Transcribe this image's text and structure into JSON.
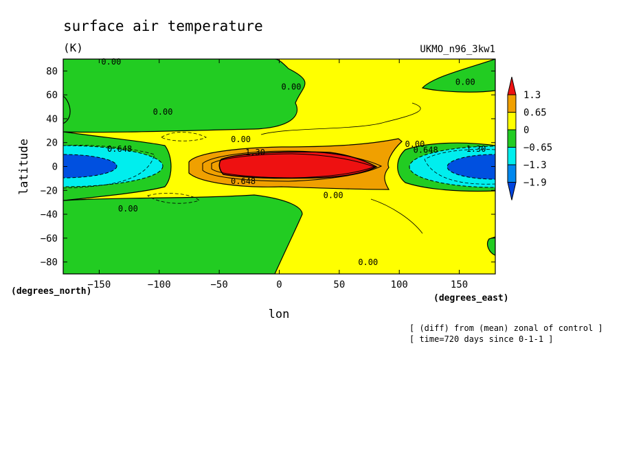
{
  "chart_data": {
    "type": "heatmap",
    "title": "surface air temperature",
    "units": "(K)",
    "model": "UKMO_n96_3kw1",
    "xlabel": "lon",
    "ylabel": "latitude",
    "x_units": "(degrees_east)",
    "y_units": "(degrees_north)",
    "xlim": [
      -180,
      180
    ],
    "ylim": [
      -90,
      90
    ],
    "x_ticks": [
      -150,
      -100,
      -50,
      0,
      50,
      100,
      150
    ],
    "y_ticks": [
      80,
      60,
      40,
      20,
      0,
      -20,
      -40,
      -60,
      -80
    ],
    "colorbar": {
      "levels": [
        1.3,
        0.65,
        0,
        -0.65,
        -1.3,
        -1.9
      ],
      "labels": [
        "1.3",
        "0.65",
        "0",
        "−0.65",
        "−1.3",
        "−1.9"
      ],
      "colors": [
        "#ee1111",
        "#f0a000",
        "#ffff00",
        "#22cc22",
        "#00eeee",
        "#0088ee",
        "#0044dd"
      ]
    },
    "contour_labels": [
      {
        "text": "0.00",
        "lon": -140,
        "lat": 86
      },
      {
        "text": "0.00",
        "lon": 10,
        "lat": 65
      },
      {
        "text": "0.00",
        "lon": 155,
        "lat": 69
      },
      {
        "text": "0.00",
        "lon": -97,
        "lat": 44
      },
      {
        "text": "0.00",
        "lon": -32,
        "lat": 21
      },
      {
        "text": "0.00",
        "lon": 113,
        "lat": 17
      },
      {
        "text": "0.648",
        "lon": -133,
        "lat": 13
      },
      {
        "text": "1.30",
        "lon": -20,
        "lat": 10
      },
      {
        "text": "0.648",
        "lon": 122,
        "lat": 12
      },
      {
        "text": "1.30",
        "lon": 164,
        "lat": 13
      },
      {
        "text": "0.648",
        "lon": -30,
        "lat": -14
      },
      {
        "text": "0.00",
        "lon": 45,
        "lat": -26
      },
      {
        "text": "0.00",
        "lon": -126,
        "lat": -37
      },
      {
        "text": "0.00",
        "lon": 74,
        "lat": -82
      }
    ],
    "notes": [
      "[ (diff) from (mean) zonal of control ]",
      "[ time=720 days since 0-1-1 ]"
    ]
  }
}
